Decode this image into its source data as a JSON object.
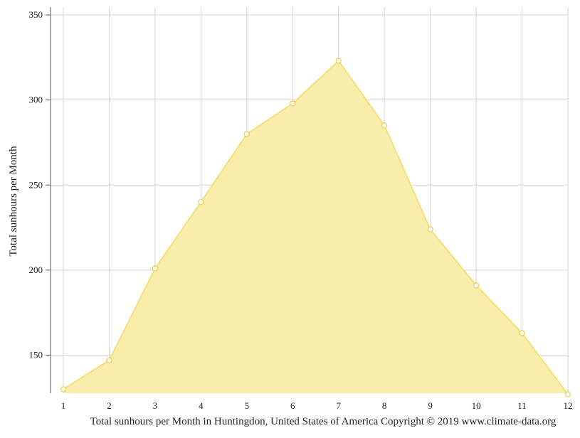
{
  "chart_data": {
    "type": "area",
    "categories": [
      "1",
      "2",
      "3",
      "4",
      "5",
      "6",
      "7",
      "8",
      "9",
      "10",
      "11",
      "12"
    ],
    "series": [
      {
        "values": [
          130,
          147,
          201,
          240,
          280,
          298,
          323,
          285,
          224,
          191,
          163,
          127
        ]
      }
    ],
    "ylabel": "Total sunhours per Month",
    "xlabel": "",
    "caption": "Total sunhours per Month in Huntingdon, United States of America Copyright © 2019 www.climate-data.org",
    "ylim": [
      127,
      355
    ],
    "yticks": [
      150,
      200,
      250,
      300,
      350
    ],
    "grid": true,
    "colors": {
      "fill": "#f9eca6",
      "line": "#f6e07a",
      "point_fill": "#ffffff",
      "point_stroke": "#e8cf4c",
      "grid": "#d6d6d6",
      "axis": "#555555"
    }
  }
}
